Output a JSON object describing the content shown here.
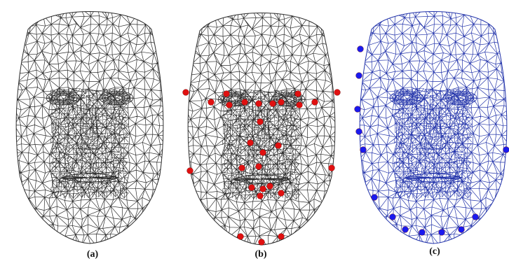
{
  "panels": [
    {
      "caption": "(a)",
      "mesh_color": "#2b2b2b",
      "landmarks": "none"
    },
    {
      "caption": "(b)",
      "mesh_color": "#2b2b2b",
      "landmarks": "inner-face",
      "landmark_color": "#e01010"
    },
    {
      "caption": "(c)",
      "mesh_color": "#2233aa",
      "landmarks": "face-contour",
      "landmark_color": "#1a1aee"
    }
  ]
}
